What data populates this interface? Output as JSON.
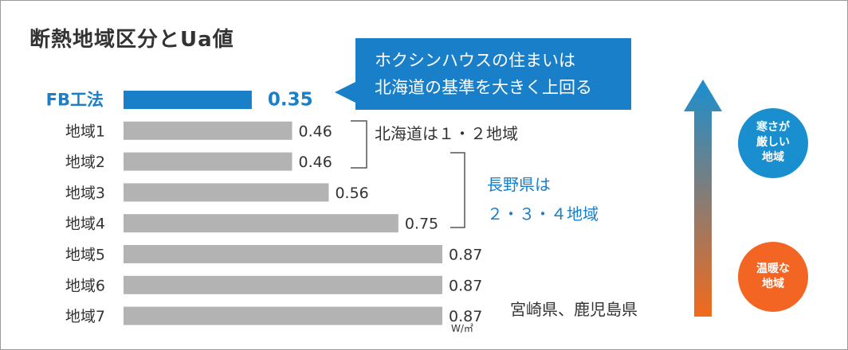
{
  "title": "断熱地域区分とUa値",
  "callout": {
    "line1": "ホクシンハウスの住まいは",
    "line2": "北海道の基準を大きく上回る"
  },
  "colors": {
    "highlight": "#1a7fc9",
    "bar": "#b3b3b3",
    "text": "#333333",
    "arrow_top": "#1a8fd0",
    "arrow_bottom": "#f26a1b",
    "cold_circle": "#1a8fd0",
    "warm_circle": "#f26522"
  },
  "chart_data": {
    "type": "bar",
    "orientation": "horizontal",
    "categories": [
      "FB工法",
      "地域1",
      "地域2",
      "地域3",
      "地域4",
      "地域5",
      "地域6",
      "地域7"
    ],
    "values": [
      0.35,
      0.46,
      0.46,
      0.56,
      0.75,
      0.87,
      0.87,
      0.87
    ],
    "value_labels": [
      "0.35",
      "0.46",
      "0.46",
      "0.56",
      "0.75",
      "0.87",
      "0.87",
      "0.87"
    ],
    "highlight_index": 0,
    "unit": "W/㎡",
    "xlim": [
      0,
      0.87
    ]
  },
  "annotations": {
    "hokkaido": "北海道は１・２地域",
    "nagano_line1": "長野県は",
    "nagano_line2": "２・３・４地域",
    "miyazaki": "宮崎県、鹿児島県"
  },
  "cold": {
    "line1": "寒さが",
    "line2": "厳しい",
    "line3": "地域"
  },
  "warm": {
    "line1": "温暖な",
    "line2": "地域"
  },
  "icons": {
    "arrow": "up-arrow-icon"
  }
}
